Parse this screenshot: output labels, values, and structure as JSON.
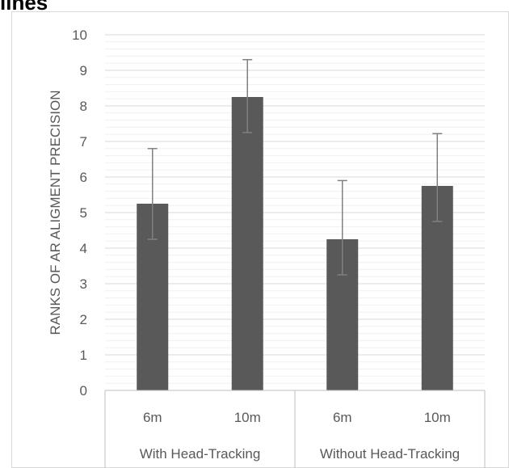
{
  "top_fragment": "lines",
  "chart_data": {
    "type": "bar",
    "title": "",
    "xlabel": "",
    "ylabel": "RANKS OF AR ALIGMENT PRECISION",
    "ylim": [
      0,
      10
    ],
    "yticks": [
      "0",
      "1",
      "2",
      "3",
      "4",
      "5",
      "6",
      "7",
      "8",
      "9",
      "10"
    ],
    "groups": [
      {
        "label": "With Head-Tracking",
        "categories": [
          "6m",
          "10m"
        ]
      },
      {
        "label": "Without Head-Tracking",
        "categories": [
          "6m",
          "10m"
        ]
      }
    ],
    "categories": [
      "6m",
      "10m",
      "6m",
      "10m"
    ],
    "values": [
      5.25,
      8.25,
      4.25,
      5.75
    ],
    "error_low": [
      4.25,
      7.25,
      3.25,
      4.75
    ],
    "error_high": [
      6.8,
      9.3,
      5.9,
      7.22
    ],
    "bar_color": "#595959",
    "grid": true,
    "legend": "none"
  }
}
